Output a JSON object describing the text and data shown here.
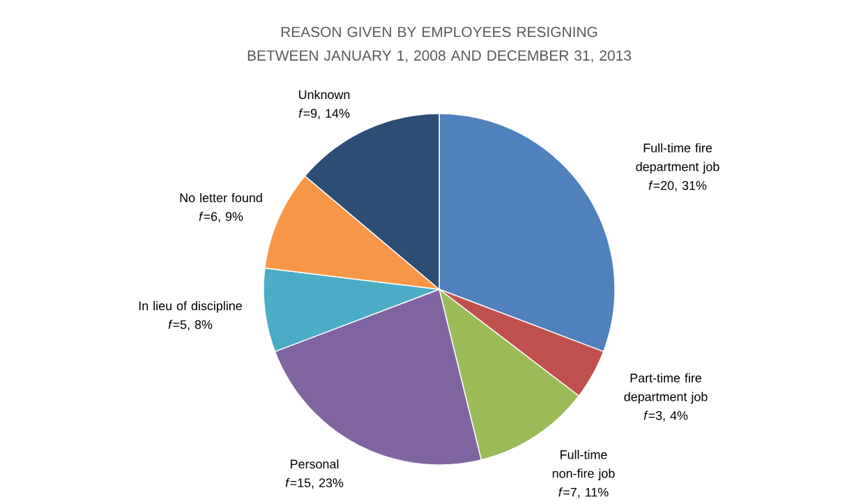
{
  "chart_data": {
    "type": "pie",
    "title": "REASON GIVEN BY EMPLOYEES RESIGNING BETWEEN JANUARY 1, 2008 AND DECEMBER 31, 2013",
    "categories": [
      "Full-time fire department job",
      "Part-time fire department job",
      "Full-time non-fire job",
      "Personal",
      "In lieu of discipline",
      "No letter found",
      "Unknown"
    ],
    "values": [
      20,
      3,
      7,
      15,
      5,
      6,
      9
    ],
    "value_labels": [
      "*f*=20, 31%",
      "*f*=3, 4%",
      "*f*=7, 11%",
      "*f*=15, 23%",
      "*f*=5, 8%",
      "*f*=6, 9%",
      "*f*=9, 14%"
    ],
    "colors": [
      "#4f81bd",
      "#c0504d",
      "#9bbb59",
      "#8064a2",
      "#4bacc6",
      "#f79646",
      "#2c4d75"
    ]
  }
}
